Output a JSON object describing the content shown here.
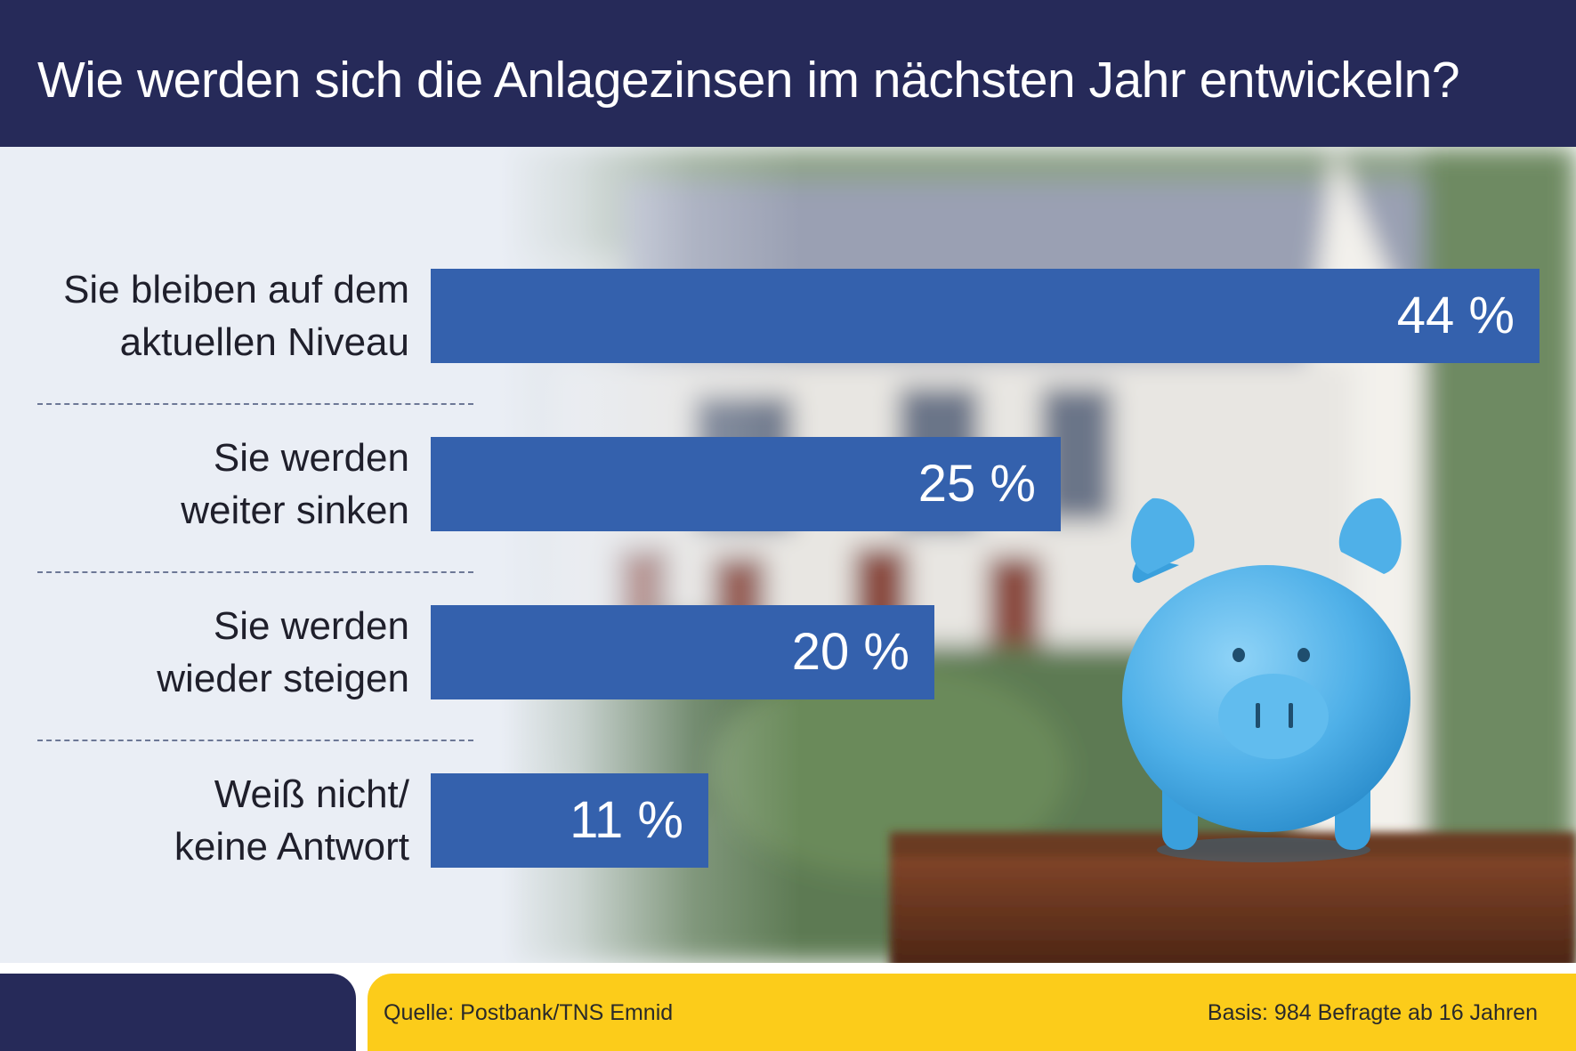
{
  "title": "Wie werden sich die Anlagezinsen im nächsten Jahr entwickeln?",
  "colors": {
    "header": "#262a59",
    "bar": "#3461ad",
    "footer_accent": "#fccc1a",
    "label_text": "#1f1f2b",
    "panel_background": "#eaeef5",
    "piggy_bank": "#5ab7ea"
  },
  "background_image": "blurred-house-with-blue-piggy-bank-on-wooden-box",
  "chart_data": {
    "type": "bar",
    "orientation": "horizontal",
    "title": "Wie werden sich die Anlagezinsen im nächsten Jahr entwickeln?",
    "xlabel": "",
    "ylabel": "",
    "unit": "%",
    "xlim": [
      0,
      44
    ],
    "grid": false,
    "categories": [
      [
        "Sie bleiben auf dem",
        "aktuellen Niveau"
      ],
      [
        "Sie werden",
        "weiter sinken"
      ],
      [
        "Sie werden",
        "wieder steigen"
      ],
      [
        "Weiß nicht/",
        "keine Antwort"
      ]
    ],
    "values": [
      44,
      25,
      20,
      11
    ],
    "value_labels": [
      "44 %",
      "25 %",
      "20 %",
      "11 %"
    ]
  },
  "footer": {
    "source": "Quelle: Postbank/TNS Emnid",
    "basis": "Basis: 984 Befragte ab 16 Jahren"
  }
}
